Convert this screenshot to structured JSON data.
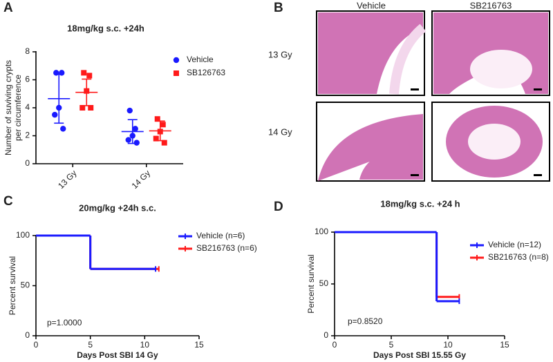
{
  "panel_labels": [
    "A",
    "B",
    "C",
    "D"
  ],
  "histology": {
    "columns": [
      "Vehicle",
      "SB216763"
    ],
    "rows": [
      "13 Gy",
      "14 Gy"
    ]
  },
  "chart_data": [
    {
      "type": "dot",
      "title": "18mg/kg s.c. +24h",
      "ylabel": [
        "Number of suviving crypts",
        "per circumference"
      ],
      "categories": [
        "13 Gy",
        "14 Gy"
      ],
      "ylim": [
        0,
        8
      ],
      "yticks": [
        0,
        2,
        4,
        6,
        8
      ],
      "series": [
        {
          "name": "Vehicle",
          "color": "#1a1aff",
          "marker": "circle",
          "points": [
            [
              6.5,
              6.5,
              4.0,
              3.5,
              2.5
            ],
            [
              3.8,
              2.5,
              2.0,
              1.7,
              1.5
            ]
          ],
          "mean": [
            4.65,
            2.3
          ],
          "sd": [
            1.75,
            0.85
          ]
        },
        {
          "name": "SB126763",
          "color": "#ff1a1a",
          "marker": "square",
          "points": [
            [
              6.5,
              6.3,
              5.2,
              4.0,
              4.0
            ],
            [
              3.2,
              2.8,
              2.3,
              1.8,
              1.5
            ]
          ],
          "mean": [
            5.1,
            2.35
          ],
          "sd": [
            0.95,
            0.7
          ]
        }
      ]
    },
    {
      "type": "survival",
      "title": "20mg/kg +24h s.c.",
      "xlabel": "Days Post SBI 14 Gy",
      "ylabel": "Percent survival",
      "xlim": [
        0,
        15
      ],
      "xticks": [
        0,
        5,
        10,
        15
      ],
      "ylim": [
        0,
        100
      ],
      "yticks": [
        0,
        50,
        100
      ],
      "annotation": "p=1.0000",
      "series": [
        {
          "name": "SB216763 (n=6)",
          "color": "#ff1a1a",
          "x": [
            0,
            5,
            11.3
          ],
          "values": [
            100,
            66.7,
            66.7
          ]
        },
        {
          "name": "Vehicle (n=6)",
          "color": "#1a1aff",
          "x": [
            0,
            5,
            11
          ],
          "values": [
            100,
            66.7,
            66.7
          ]
        }
      ]
    },
    {
      "type": "survival",
      "title": "18mg/kg s.c. +24 h",
      "xlabel": "Days Post SBI 15.55 Gy",
      "ylabel": "Percent survival",
      "xlim": [
        0,
        15
      ],
      "xticks": [
        0,
        5,
        10,
        15
      ],
      "ylim": [
        0,
        100
      ],
      "yticks": [
        0,
        50,
        100
      ],
      "annotation": "p=0.8520",
      "series": [
        {
          "name": "SB216763 (n=8)",
          "color": "#ff1a1a",
          "x": [
            0,
            9,
            11
          ],
          "values": [
            100,
            37.5,
            37.5
          ]
        },
        {
          "name": "Vehicle (n=12)",
          "color": "#1a1aff",
          "x": [
            0,
            9,
            11
          ],
          "values": [
            100,
            33.3,
            33.3
          ]
        }
      ]
    }
  ]
}
